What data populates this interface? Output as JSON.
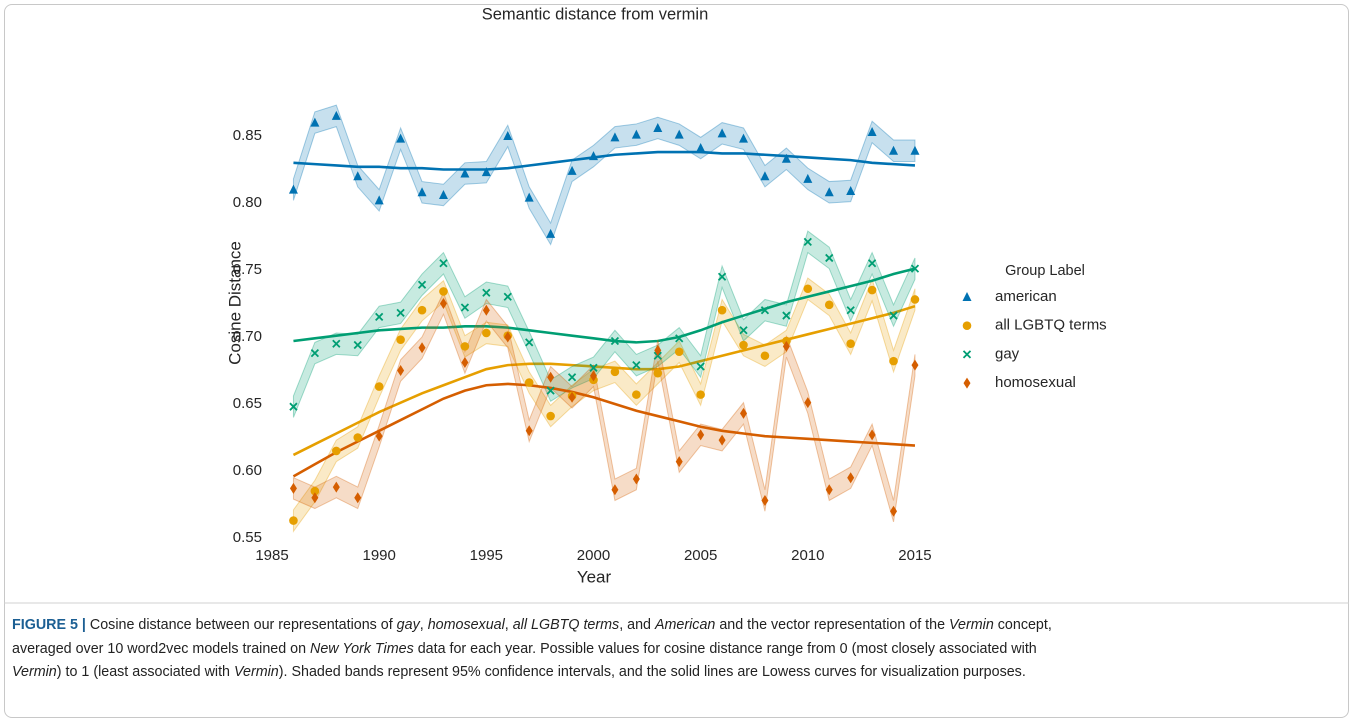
{
  "chart_data": {
    "type": "line",
    "title": "Semantic distance from vermin",
    "x_label": "Year",
    "y_label": "Cosine Distance",
    "legend_title": "Group Label",
    "legend_position": "right",
    "x": [
      1986,
      1987,
      1988,
      1989,
      1990,
      1991,
      1992,
      1993,
      1994,
      1995,
      1996,
      1997,
      1998,
      1999,
      2000,
      2001,
      2002,
      2003,
      2004,
      2005,
      2006,
      2007,
      2008,
      2009,
      2010,
      2011,
      2012,
      2013,
      2014,
      2015
    ],
    "xlim": [
      1984.5,
      2016
    ],
    "xticks": [
      1985,
      1990,
      1995,
      2000,
      2005,
      2010,
      2015
    ],
    "ylim": [
      0.54,
      0.89
    ],
    "yticks": [
      {
        "value": 0.55,
        "label": "0.55"
      },
      {
        "value": 0.6,
        "label": "0.60"
      },
      {
        "value": 0.65,
        "label": "0.65"
      },
      {
        "value": 0.7,
        "label": "0.70"
      },
      {
        "value": 0.75,
        "label": "0.75"
      },
      {
        "value": 0.8,
        "label": "0.80"
      },
      {
        "value": 0.85,
        "label": "0.85"
      }
    ],
    "series": [
      {
        "name": "american",
        "color": "#0072b2",
        "marker": "triangle",
        "ci": 0.008,
        "values": [
          0.81,
          0.86,
          0.865,
          0.82,
          0.802,
          0.848,
          0.808,
          0.806,
          0.822,
          0.823,
          0.85,
          0.804,
          0.777,
          0.824,
          0.835,
          0.849,
          0.851,
          0.856,
          0.851,
          0.841,
          0.852,
          0.848,
          0.82,
          0.833,
          0.818,
          0.808,
          0.809,
          0.853,
          0.839,
          0.839
        ],
        "trend": [
          0.83,
          0.829,
          0.828,
          0.827,
          0.827,
          0.826,
          0.826,
          0.825,
          0.825,
          0.825,
          0.826,
          0.828,
          0.83,
          0.832,
          0.834,
          0.836,
          0.837,
          0.838,
          0.838,
          0.838,
          0.837,
          0.837,
          0.836,
          0.835,
          0.834,
          0.833,
          0.832,
          0.83,
          0.829,
          0.828
        ]
      },
      {
        "name": "all LGBTQ terms",
        "color": "#e69f00",
        "marker": "circle",
        "ci": 0.008,
        "values": [
          0.563,
          0.585,
          0.615,
          0.625,
          0.663,
          0.698,
          0.72,
          0.734,
          0.693,
          0.703,
          0.701,
          0.666,
          0.641,
          0.656,
          0.668,
          0.674,
          0.657,
          0.673,
          0.689,
          0.657,
          0.72,
          0.694,
          0.686,
          0.697,
          0.736,
          0.724,
          0.695,
          0.735,
          0.682,
          0.728
        ],
        "trend": [
          0.612,
          0.62,
          0.628,
          0.636,
          0.644,
          0.651,
          0.658,
          0.664,
          0.67,
          0.676,
          0.679,
          0.68,
          0.68,
          0.679,
          0.678,
          0.677,
          0.676,
          0.676,
          0.678,
          0.682,
          0.686,
          0.69,
          0.694,
          0.698,
          0.702,
          0.706,
          0.71,
          0.714,
          0.718,
          0.723
        ]
      },
      {
        "name": "gay",
        "color": "#009e73",
        "marker": "x",
        "ci": 0.008,
        "values": [
          0.648,
          0.688,
          0.695,
          0.694,
          0.715,
          0.718,
          0.739,
          0.755,
          0.722,
          0.733,
          0.73,
          0.696,
          0.66,
          0.67,
          0.677,
          0.697,
          0.679,
          0.686,
          0.699,
          0.678,
          0.745,
          0.705,
          0.72,
          0.716,
          0.771,
          0.759,
          0.72,
          0.755,
          0.716,
          0.751
        ],
        "trend": [
          0.697,
          0.699,
          0.701,
          0.703,
          0.705,
          0.706,
          0.707,
          0.707,
          0.708,
          0.708,
          0.707,
          0.705,
          0.703,
          0.701,
          0.699,
          0.697,
          0.696,
          0.697,
          0.7,
          0.705,
          0.711,
          0.716,
          0.721,
          0.726,
          0.73,
          0.734,
          0.738,
          0.742,
          0.747,
          0.751
        ]
      },
      {
        "name": "homosexual",
        "color": "#d55e00",
        "marker": "diamond",
        "ci": 0.008,
        "values": [
          0.587,
          0.58,
          0.588,
          0.58,
          0.626,
          0.675,
          0.692,
          0.725,
          0.681,
          0.72,
          0.7,
          0.63,
          0.67,
          0.655,
          0.671,
          0.586,
          0.594,
          0.69,
          0.607,
          0.627,
          0.623,
          0.643,
          0.578,
          0.693,
          0.651,
          0.586,
          0.595,
          0.627,
          0.57,
          0.679
        ],
        "trend": [
          0.596,
          0.605,
          0.614,
          0.622,
          0.63,
          0.638,
          0.646,
          0.654,
          0.66,
          0.664,
          0.665,
          0.664,
          0.662,
          0.659,
          0.655,
          0.65,
          0.645,
          0.641,
          0.637,
          0.633,
          0.63,
          0.628,
          0.626,
          0.625,
          0.624,
          0.623,
          0.622,
          0.621,
          0.62,
          0.619
        ]
      }
    ]
  },
  "caption": {
    "lines": [
      [
        {
          "text": "FIGURE 5 |",
          "style": "bold"
        },
        {
          "text": " Cosine distance between our representations of ",
          "style": "normal"
        },
        {
          "text": "gay",
          "style": "italic"
        },
        {
          "text": ", ",
          "style": "normal"
        },
        {
          "text": "homosexual",
          "style": "italic"
        },
        {
          "text": ", ",
          "style": "normal"
        },
        {
          "text": "all LGBTQ terms",
          "style": "italic"
        },
        {
          "text": ", and ",
          "style": "normal"
        },
        {
          "text": "American",
          "style": "italic"
        },
        {
          "text": " and the vector representation of the ",
          "style": "normal"
        },
        {
          "text": "Vermin",
          "style": "italic"
        },
        {
          "text": " concept,",
          "style": "normal"
        }
      ],
      [
        {
          "text": "averaged over 10 word2vec models trained on ",
          "style": "normal"
        },
        {
          "text": "New York Times",
          "style": "italic"
        },
        {
          "text": " data for each year. Possible values for cosine distance range from 0 (most closely associated with",
          "style": "normal"
        }
      ],
      [
        {
          "text": "Vermin",
          "style": "italic"
        },
        {
          "text": ") to 1 (least associated with ",
          "style": "normal"
        },
        {
          "text": "Vermin",
          "style": "italic"
        },
        {
          "text": "). Shaded bands represent 95% confidence intervals, and the solid lines are Lowess curves for visualization purposes.",
          "style": "normal"
        }
      ]
    ]
  }
}
